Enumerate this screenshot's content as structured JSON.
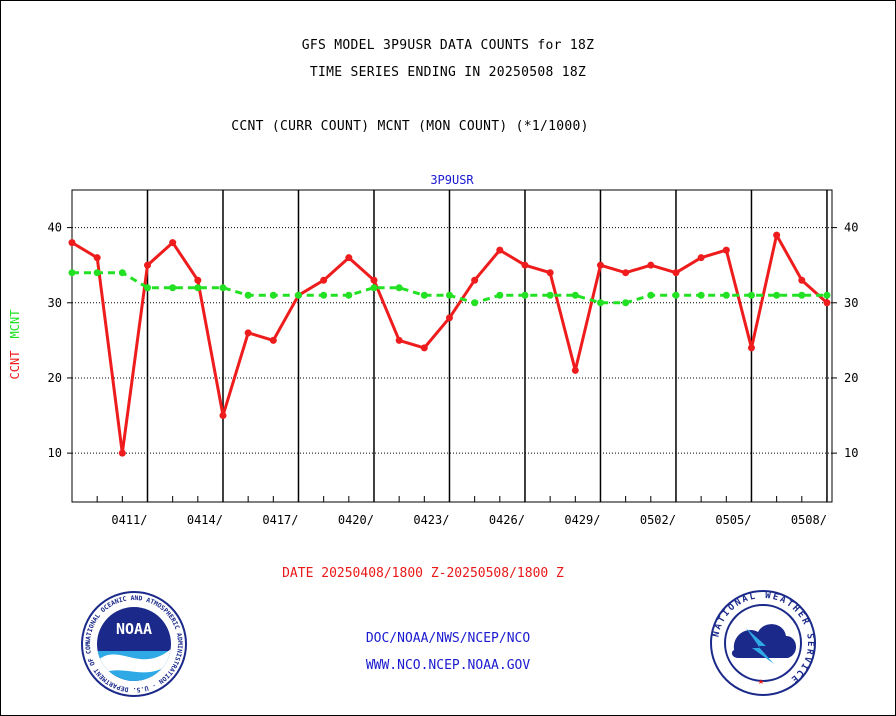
{
  "header": {
    "line1": "GFS MODEL 3P9USR DATA COUNTS for 18Z",
    "line2": "TIME SERIES ENDING IN 20250508 18Z",
    "line3": "CCNT (CURR COUNT) MCNT (MON COUNT) (*1/1000)"
  },
  "chart_data": {
    "type": "line",
    "title": "3P9USR",
    "ylabel_left": [
      "CCNT",
      "MCNT"
    ],
    "ylim": [
      3.5,
      45
    ],
    "yticks": [
      10,
      20,
      30,
      40
    ],
    "xlim_days": [
      0,
      30.2
    ],
    "x_tick_labels": [
      "0411/",
      "0414/",
      "0417/",
      "0420/",
      "0423/",
      "0426/",
      "0429/",
      "0502/",
      "0505/",
      "0508/"
    ],
    "x_tick_days": [
      3,
      6,
      9,
      12,
      15,
      18,
      21,
      24,
      27,
      30
    ],
    "grid": true,
    "series": [
      {
        "name": "CCNT",
        "color": "#ee1c1c",
        "style": "solid",
        "x_days": [
          0,
          1,
          2,
          3,
          4,
          5,
          6,
          7,
          8,
          9,
          10,
          11,
          12,
          13,
          14,
          15,
          16,
          17,
          18,
          19,
          20,
          21,
          22,
          23,
          24,
          25,
          26,
          27,
          28,
          29,
          30
        ],
        "values": [
          38,
          36,
          10,
          35,
          38,
          33,
          15,
          26,
          25,
          31,
          33,
          36,
          33,
          25,
          24,
          28,
          33,
          37,
          35,
          34,
          21,
          35,
          34,
          35,
          34,
          36,
          37,
          24,
          39,
          33,
          30
        ]
      },
      {
        "name": "MCNT",
        "color": "#22e022",
        "style": "dashed",
        "x_days": [
          0,
          1,
          2,
          3,
          4,
          5,
          6,
          7,
          8,
          9,
          10,
          11,
          12,
          13,
          14,
          15,
          16,
          17,
          18,
          19,
          20,
          21,
          22,
          23,
          24,
          25,
          26,
          27,
          28,
          29,
          30
        ],
        "values": [
          34,
          34,
          34,
          32,
          32,
          32,
          32,
          31,
          31,
          31,
          31,
          31,
          32,
          32,
          31,
          31,
          30,
          31,
          31,
          31,
          31,
          30,
          30,
          31,
          31,
          31,
          31,
          31,
          31,
          31,
          31
        ]
      }
    ]
  },
  "date_range": "DATE 20250408/1800 Z-20250508/1800 Z",
  "footer": {
    "line1": "DOC/NOAA/NWS/NCEP/NCO",
    "line2": "WWW.NCO.NCEP.NOAA.GOV"
  },
  "logos": {
    "noaa_text": "NOAA",
    "noaa_ring": "NATIONAL OCEANIC AND ATMOSPHERIC ADMINISTRATION · U.S. DEPARTMENT OF COMMERCE ·",
    "nws_ring": "NATIONAL WEATHER SERVICE"
  },
  "colors": {
    "ccnt": "#ee1c1c",
    "mcnt": "#22e022",
    "chart_title": "#1a1ad0",
    "footer": "#1a1ad0",
    "date": "#e81818"
  }
}
